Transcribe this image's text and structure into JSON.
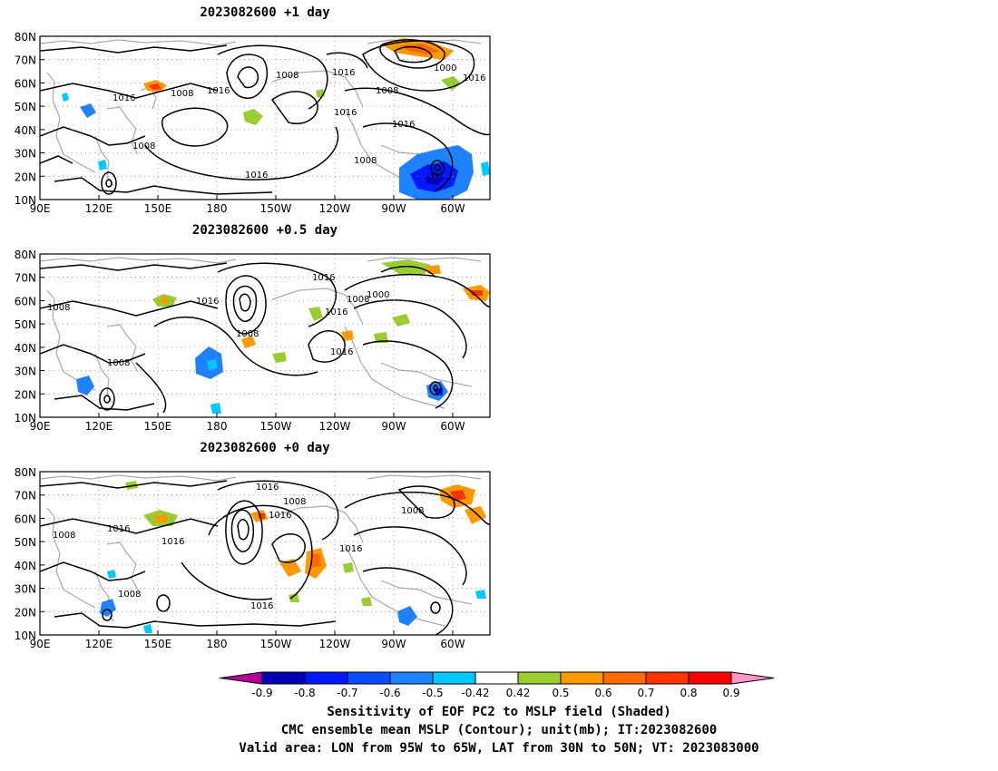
{
  "panels": [
    {
      "title": "2023082600  +1 day",
      "contour_labels": [
        "1016",
        "1008",
        "1016",
        "1008",
        "1016",
        "1016",
        "1008",
        "1000",
        "1016",
        "1016",
        "1016",
        "1008",
        "1008"
      ]
    },
    {
      "title": "2023082600  +0.5 day",
      "contour_labels": [
        "1008",
        "1016",
        "1016",
        "1008",
        "1000",
        "1008",
        "1016",
        "1016",
        "1008"
      ]
    },
    {
      "title": "2023082600  +0 day",
      "contour_labels": [
        "1016",
        "1008",
        "1016",
        "1008",
        "1016",
        "1016",
        "1008",
        "1016",
        "1008",
        "1016"
      ]
    }
  ],
  "axes": {
    "lat_labels": [
      "80N",
      "70N",
      "60N",
      "50N",
      "40N",
      "30N",
      "20N",
      "10N"
    ],
    "lon_labels": [
      "90E",
      "120E",
      "150E",
      "180",
      "150W",
      "120W",
      "90W",
      "60W"
    ]
  },
  "colorbar": {
    "labels": [
      "-0.9",
      "-0.8",
      "-0.7",
      "-0.6",
      "-0.5",
      "-0.42",
      "0.42",
      "0.5",
      "0.6",
      "0.7",
      "0.8",
      "0.9"
    ],
    "colors": [
      "#0000b4",
      "#0018ff",
      "#0a4cff",
      "#1e82ff",
      "#00c8ff",
      "#ffffff",
      "#9acd32",
      "#ff9900",
      "#ff6a00",
      "#ff3300",
      "#ff0000"
    ],
    "left_cap_color": "#b4009b",
    "right_cap_color": "#ff96c8"
  },
  "caption": {
    "line1": "Sensitivity of EOF PC2 to MSLP field (Shaded)",
    "line2": "CMC ensemble mean MSLP (Contour); unit(mb); IT:2023082600",
    "line3": "Valid area: LON from 95W to 65W, LAT from 30N to 50N; VT: 2023083000"
  }
}
